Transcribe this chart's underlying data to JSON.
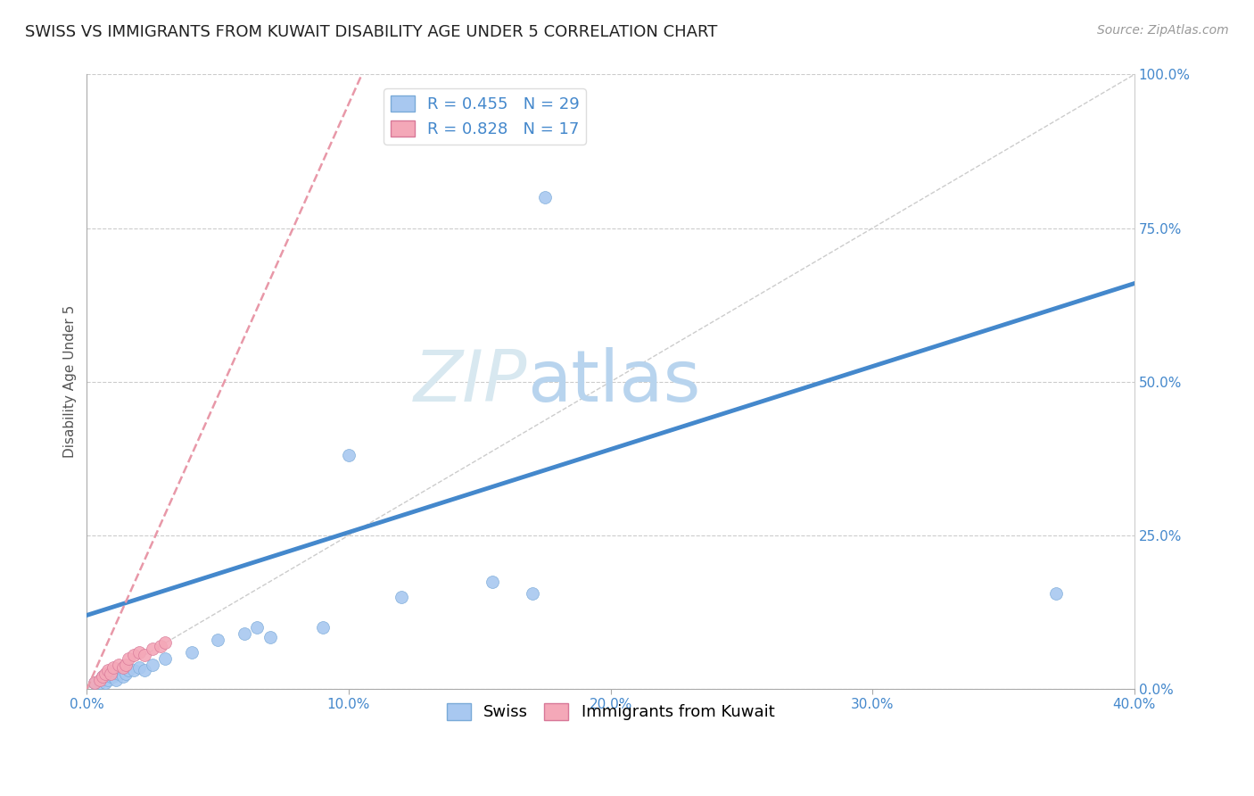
{
  "title": "SWISS VS IMMIGRANTS FROM KUWAIT DISABILITY AGE UNDER 5 CORRELATION CHART",
  "source_text": "Source: ZipAtlas.com",
  "ylabel": "Disability Age Under 5",
  "xlim": [
    0.0,
    0.4
  ],
  "ylim": [
    0.0,
    1.0
  ],
  "xtick_values": [
    0.0,
    0.1,
    0.2,
    0.3,
    0.4
  ],
  "ytick_values": [
    0.0,
    0.25,
    0.5,
    0.75,
    1.0
  ],
  "r_swiss": 0.455,
  "n_swiss": 29,
  "r_kuwait": 0.828,
  "n_kuwait": 17,
  "swiss_color": "#a8c8f0",
  "swiss_edge_color": "#7aaad8",
  "kuwait_color": "#f4a8b8",
  "kuwait_edge_color": "#d87898",
  "swiss_line_color": "#4488cc",
  "kuwait_line_color": "#e898a8",
  "ref_line_color": "#cccccc",
  "watermark_zip_color": "#d8e8f0",
  "watermark_atlas_color": "#b8d4ee",
  "background_color": "#ffffff",
  "swiss_x": [
    0.003,
    0.005,
    0.006,
    0.007,
    0.008,
    0.009,
    0.01,
    0.011,
    0.012,
    0.014,
    0.015,
    0.016,
    0.018,
    0.02,
    0.022,
    0.025,
    0.03,
    0.04,
    0.05,
    0.06,
    0.065,
    0.07,
    0.09,
    0.1,
    0.12,
    0.155,
    0.17,
    0.175,
    0.37
  ],
  "swiss_y": [
    0.01,
    0.01,
    0.02,
    0.01,
    0.015,
    0.02,
    0.02,
    0.015,
    0.025,
    0.02,
    0.025,
    0.03,
    0.03,
    0.035,
    0.03,
    0.04,
    0.05,
    0.06,
    0.08,
    0.09,
    0.1,
    0.085,
    0.1,
    0.38,
    0.15,
    0.175,
    0.155,
    0.8,
    0.155
  ],
  "kuwait_x": [
    0.003,
    0.005,
    0.006,
    0.007,
    0.008,
    0.009,
    0.01,
    0.012,
    0.014,
    0.015,
    0.016,
    0.018,
    0.02,
    0.022,
    0.025,
    0.028,
    0.03
  ],
  "kuwait_y": [
    0.01,
    0.015,
    0.02,
    0.025,
    0.03,
    0.025,
    0.035,
    0.04,
    0.035,
    0.04,
    0.05,
    0.055,
    0.06,
    0.055,
    0.065,
    0.07,
    0.075
  ],
  "swiss_line_x": [
    0.0,
    0.4
  ],
  "swiss_line_y": [
    0.12,
    0.66
  ],
  "kuwait_line_x": [
    0.0,
    0.105
  ],
  "kuwait_line_y": [
    0.0,
    1.0
  ],
  "legend_fontsize": 13,
  "title_fontsize": 13,
  "axis_label_fontsize": 11,
  "tick_fontsize": 11,
  "marker_size": 100
}
